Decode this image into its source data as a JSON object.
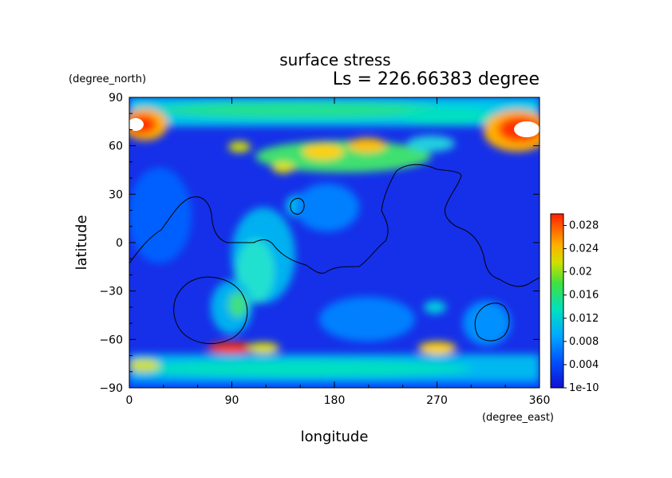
{
  "chart_data": {
    "type": "heatmap",
    "title": "surface stress",
    "subtitle": "Ls = 226.66383 degree",
    "xlabel": "longitude",
    "ylabel": "latitude",
    "x_unit": "(degree_east)",
    "y_unit": "(degree_north)",
    "xlim": [
      0,
      360
    ],
    "ylim": [
      -90,
      90
    ],
    "xticks": [
      "0",
      "90",
      "180",
      "270",
      "360"
    ],
    "yticks": [
      "90",
      "60",
      "30",
      "0",
      "−30",
      "−60",
      "−90"
    ],
    "colorbar": {
      "min": 0,
      "max": 0.03,
      "ticks": [
        "1e-10",
        "0.004",
        "0.008",
        "0.012",
        "0.016",
        "0.02",
        "0.024",
        "0.028"
      ]
    },
    "colors": {
      "low": "#1010e0",
      "mid": "#00e0c0",
      "high": "#ff2000",
      "saturated": "#ffffff"
    },
    "features": [
      {
        "region": "north polar band (around 70N to 80N)",
        "level": "moderate to high, 0.008 to 0.02"
      },
      {
        "region": "polar cap edge near 0 and 360 longitude, 70N",
        "level": "saturated, above 0.03"
      },
      {
        "region": "mid latitudes 50N to 60N, 110 to 220 longitude",
        "level": "high, about 0.02"
      },
      {
        "region": "southern band around 60S to 70S",
        "level": "moderate, 0.008 to 0.016"
      },
      {
        "region": "eastern hemisphere interior",
        "level": "low, below 0.004"
      }
    ],
    "grid": false
  }
}
